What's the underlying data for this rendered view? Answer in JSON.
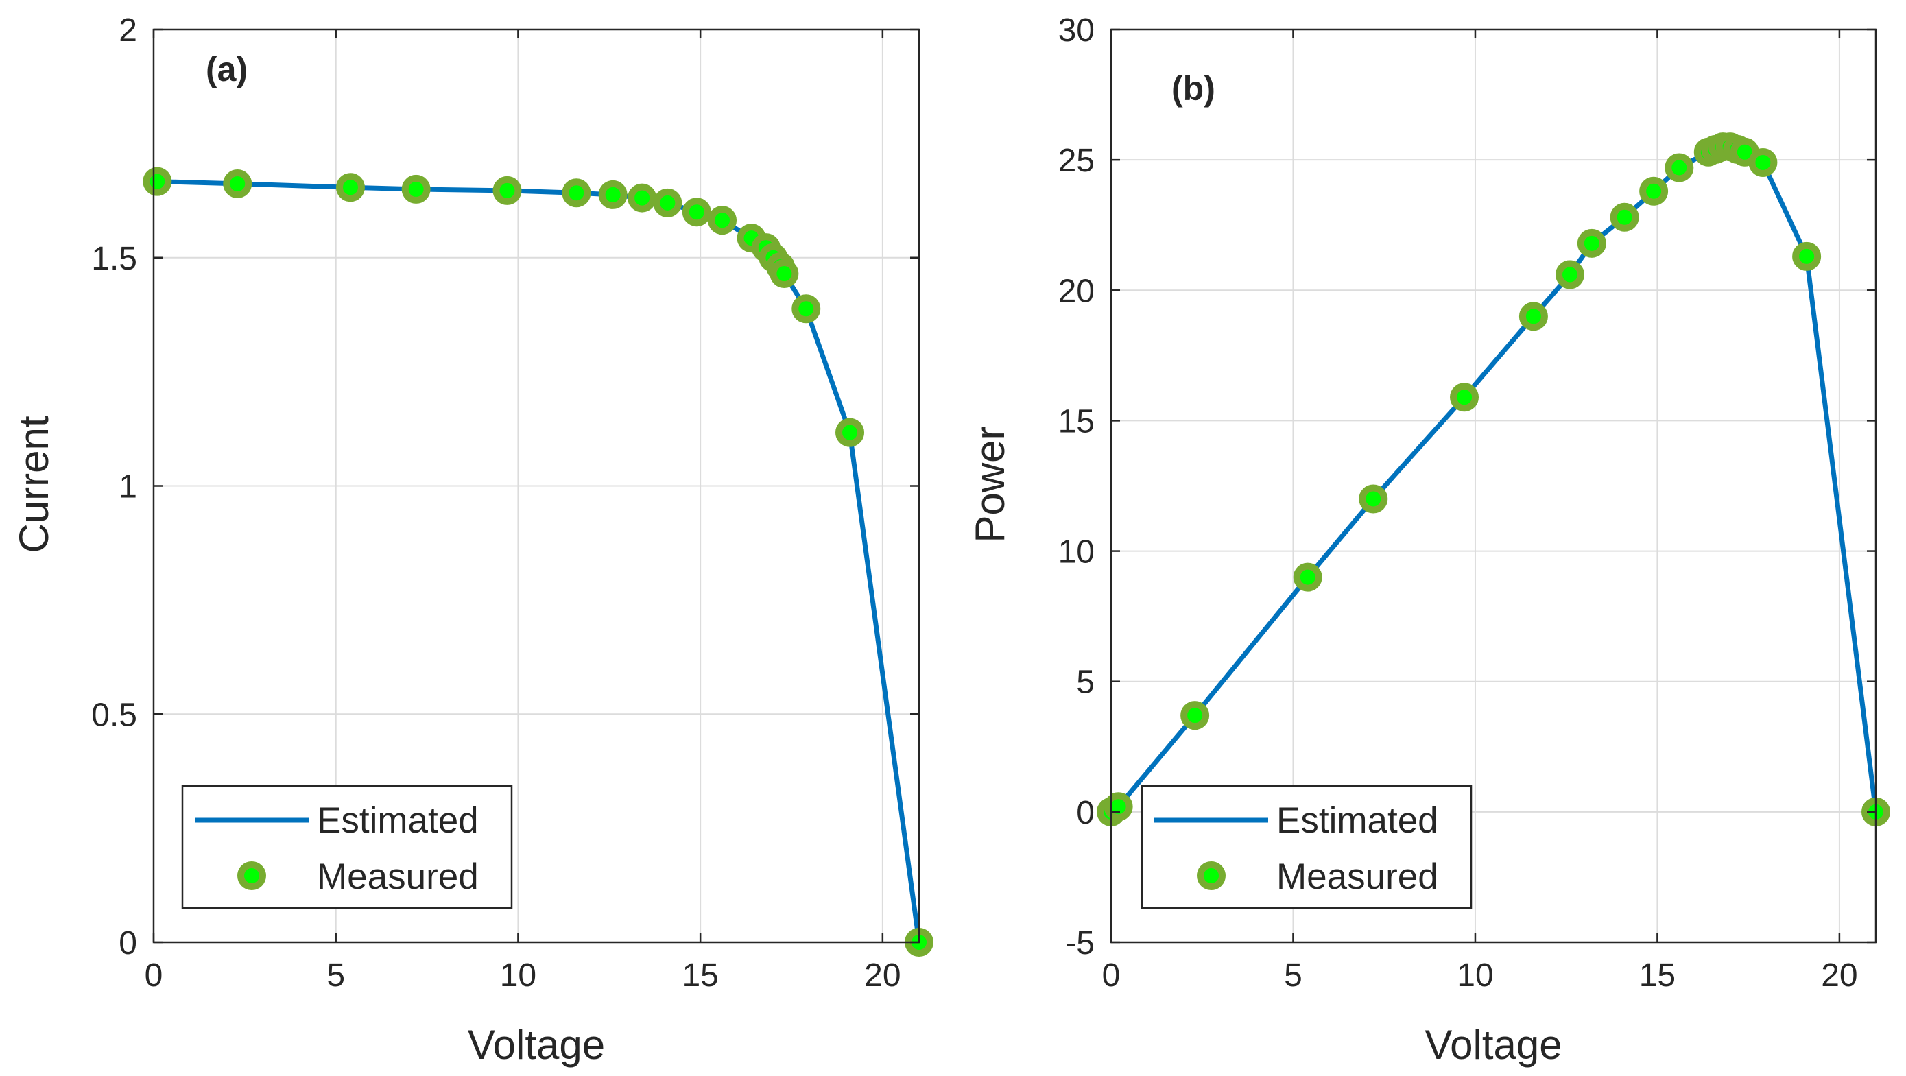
{
  "colors": {
    "estimated_line": "#0072BD",
    "marker_face": "#00FF00",
    "marker_edge": "#77AC30",
    "grid": "#dcdcdc",
    "axis": "#262626"
  },
  "chart_data": [
    {
      "type": "line",
      "panel_label": "(a)",
      "xlabel": "Voltage",
      "ylabel": "Current",
      "xlim": [
        0,
        21
      ],
      "ylim": [
        0,
        2
      ],
      "xticks": [
        0,
        5,
        10,
        15,
        20
      ],
      "xtick_labels": [
        "0",
        "5",
        "10",
        "15",
        "20"
      ],
      "yticks": [
        0,
        0.5,
        1,
        1.5,
        2
      ],
      "ytick_labels": [
        "0",
        "0.5",
        "1",
        "1.5",
        "2"
      ],
      "grid": true,
      "legend_position": "bottom-left",
      "series": [
        {
          "name": "Estimated",
          "style": "line",
          "x": [
            0.1,
            2.3,
            5.4,
            7.2,
            9.7,
            11.6,
            12.6,
            13.4,
            14.1,
            14.9,
            15.6,
            16.4,
            16.8,
            17.0,
            17.2,
            17.3,
            17.9,
            19.1,
            21.0
          ],
          "y": [
            1.667,
            1.662,
            1.654,
            1.65,
            1.647,
            1.642,
            1.638,
            1.631,
            1.62,
            1.6,
            1.582,
            1.543,
            1.522,
            1.5,
            1.48,
            1.465,
            1.388,
            1.117,
            0.0
          ]
        },
        {
          "name": "Measured",
          "style": "markers",
          "x": [
            0.1,
            2.3,
            5.4,
            7.2,
            9.7,
            11.6,
            12.6,
            13.4,
            14.1,
            14.9,
            15.6,
            16.4,
            16.8,
            17.0,
            17.2,
            17.3,
            17.9,
            19.1,
            21.0
          ],
          "y": [
            1.667,
            1.662,
            1.654,
            1.65,
            1.647,
            1.642,
            1.638,
            1.631,
            1.62,
            1.6,
            1.582,
            1.543,
            1.522,
            1.5,
            1.48,
            1.465,
            1.388,
            1.117,
            0.0
          ]
        }
      ]
    },
    {
      "type": "line",
      "panel_label": "(b)",
      "xlabel": "Voltage",
      "ylabel": "Power",
      "xlim": [
        0,
        21
      ],
      "ylim": [
        -5,
        30
      ],
      "xticks": [
        0,
        5,
        10,
        15,
        20
      ],
      "xtick_labels": [
        "0",
        "5",
        "10",
        "15",
        "20"
      ],
      "yticks": [
        -5,
        0,
        5,
        10,
        15,
        20,
        25,
        30
      ],
      "ytick_labels": [
        "-5",
        "0",
        "5",
        "10",
        "15",
        "20",
        "25",
        "30"
      ],
      "grid": true,
      "legend_position": "bottom-left",
      "series": [
        {
          "name": "Estimated",
          "style": "line",
          "x": [
            0.0,
            0.2,
            2.3,
            5.4,
            7.2,
            9.7,
            11.6,
            12.6,
            13.2,
            14.1,
            14.9,
            15.6,
            16.4,
            16.6,
            16.8,
            17.0,
            17.2,
            17.4,
            17.9,
            19.1,
            21.0
          ],
          "y": [
            0.0,
            0.2,
            3.7,
            9.0,
            12.0,
            15.9,
            19.0,
            20.6,
            21.8,
            22.8,
            23.8,
            24.7,
            25.3,
            25.4,
            25.5,
            25.5,
            25.4,
            25.3,
            24.9,
            21.3,
            0.0
          ]
        },
        {
          "name": "Measured",
          "style": "markers",
          "x": [
            0.0,
            0.2,
            2.3,
            5.4,
            7.2,
            9.7,
            11.6,
            12.6,
            13.2,
            14.1,
            14.9,
            15.6,
            16.4,
            16.6,
            16.8,
            17.0,
            17.2,
            17.4,
            17.9,
            19.1,
            21.0
          ],
          "y": [
            0.0,
            0.2,
            3.7,
            9.0,
            12.0,
            15.9,
            19.0,
            20.6,
            21.8,
            22.8,
            23.8,
            24.7,
            25.3,
            25.4,
            25.5,
            25.5,
            25.4,
            25.3,
            24.9,
            21.3,
            0.0
          ]
        }
      ]
    }
  ]
}
